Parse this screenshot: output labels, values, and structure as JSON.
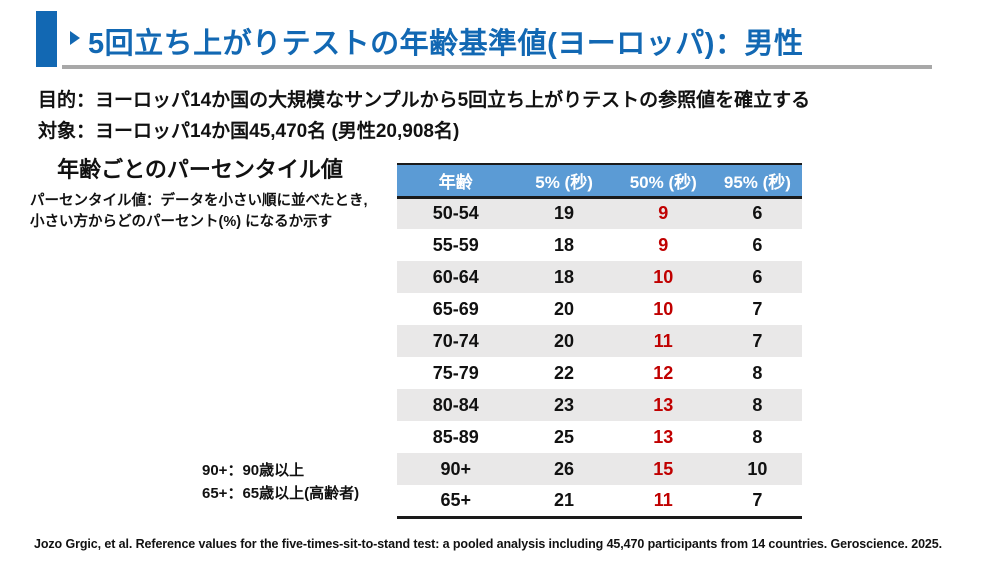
{
  "slide": {
    "title": "5回立ち上がりテストの年齢基準値(ヨーロッパ)：男性",
    "purpose": "目的：ヨーロッパ14か国の大規模なサンプルから5回立ち上がりテストの参照値を確立する",
    "subjects": "対象：ヨーロッパ14か国45,470名 (男性20,908名)",
    "section_heading": "年齢ごとのパーセンタイル値",
    "definition_line1": "パーセンタイル値：データを小さい順に並べたとき,",
    "definition_line2": "小さい方からどのパーセント(%) になるか示す",
    "notes": [
      "90+：90歳以上",
      "65+：65歳以上(高齢者)"
    ],
    "citation": "Jozo Grgic, et al. Reference values for the five-times-sit-to-stand test: a pooled analysis including 45,470 participants from 14 countries. Geroscience. 2025."
  },
  "icons": {
    "arrow_bullet": "right-pointing-triangle"
  },
  "table": {
    "headers": [
      "年齢",
      "5% (秒)",
      "50% (秒)",
      "95% (秒)"
    ],
    "rows": [
      [
        "50-54",
        "19",
        "9",
        "6"
      ],
      [
        "55-59",
        "18",
        "9",
        "6"
      ],
      [
        "60-64",
        "18",
        "10",
        "6"
      ],
      [
        "65-69",
        "20",
        "10",
        "7"
      ],
      [
        "70-74",
        "20",
        "11",
        "7"
      ],
      [
        "75-79",
        "22",
        "12",
        "8"
      ],
      [
        "80-84",
        "23",
        "13",
        "8"
      ],
      [
        "85-89",
        "25",
        "13",
        "8"
      ],
      [
        "90+",
        "26",
        "15",
        "10"
      ],
      [
        "65+",
        "21",
        "11",
        "7"
      ]
    ]
  },
  "chart_data": {
    "type": "table",
    "title": "年齢ごとのパーセンタイル値",
    "categories": [
      "50-54",
      "55-59",
      "60-64",
      "65-69",
      "70-74",
      "75-79",
      "80-84",
      "85-89",
      "90+",
      "65+"
    ],
    "series": [
      {
        "name": "5% (秒)",
        "values": [
          19,
          18,
          18,
          20,
          20,
          22,
          23,
          25,
          26,
          21
        ]
      },
      {
        "name": "50% (秒)",
        "values": [
          9,
          9,
          10,
          10,
          11,
          12,
          13,
          13,
          15,
          11
        ]
      },
      {
        "name": "95% (秒)",
        "values": [
          6,
          6,
          6,
          7,
          7,
          8,
          8,
          8,
          10,
          7
        ]
      }
    ]
  },
  "colors": {
    "accent_blue": "#1268b3",
    "header_blue": "#5b9bd5",
    "row_gray": "#e9e8e8",
    "value_red": "#c00000",
    "divider_gray": "#a8a8a8"
  }
}
